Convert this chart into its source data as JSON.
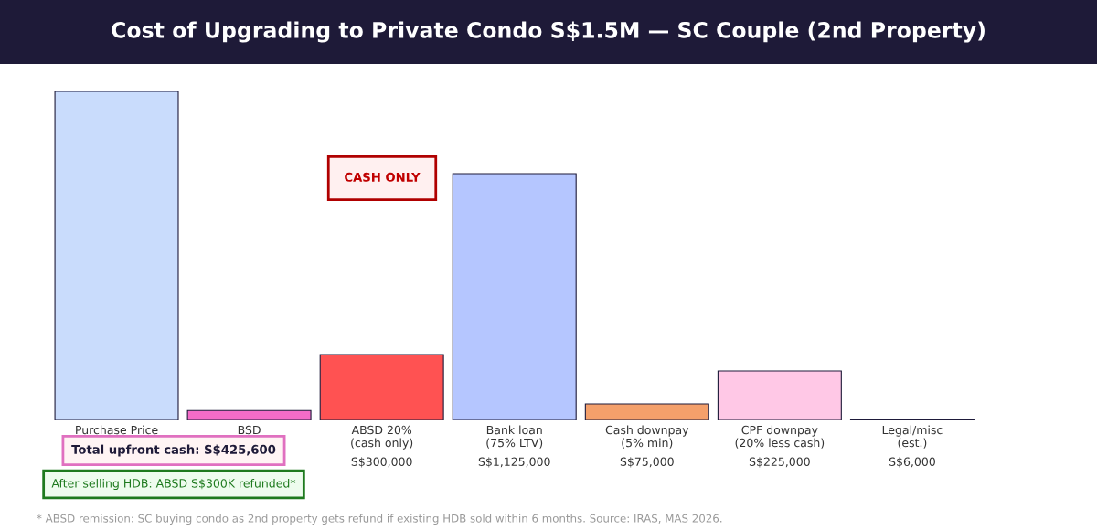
{
  "chart_data": {
    "type": "bar",
    "title": "Cost of Upgrading to Private Condo S$1.5M — SC Couple (2nd Property)",
    "categories": [
      "Purchase Price",
      "BSD",
      "ABSD 20%\n(cash only)",
      "Bank loan\n(75% LTV)",
      "Cash downpay\n(5% min)",
      "CPF downpay\n(20% less cash)",
      "Legal/misc\n(est.)"
    ],
    "values": [
      1500000,
      44600,
      300000,
      1125000,
      75000,
      225000,
      6000
    ],
    "colors": [
      "#c9dcfc",
      "#f56cc8",
      "#ff5252",
      "#b5c6ff",
      "#f4a06b",
      "#ffc8e6",
      "#1e1b3a"
    ],
    "value_labels": [
      null,
      null,
      "S$300,000",
      "S$1,125,000",
      "S$75,000",
      "S$225,000",
      "S$6,000"
    ],
    "ylim": [
      0,
      1500000
    ],
    "tick_labels": "x",
    "grid": false,
    "legend": false,
    "annotations": [
      "CASH ONLY",
      "Total upfront cash: S$425,600",
      "After selling HDB: ABSD S$300K refunded*",
      "* ABSD remission: SC buying condo as 2nd property gets refund if existing HDB sold within 6 months. Source: IRAS, MAS 2026."
    ]
  }
}
